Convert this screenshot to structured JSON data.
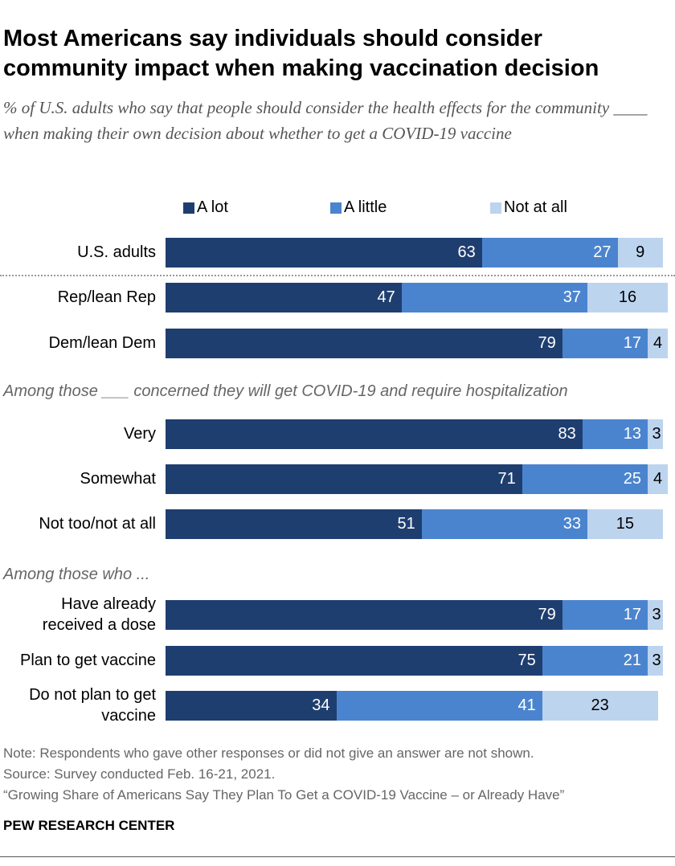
{
  "title": "Most Americans say individuals should consider community impact when making vaccination decision",
  "subtitle": "% of U.S. adults who say that people should consider the health effects for the community ____ when making their own decision about whether to get a COVID-19 vaccine",
  "chart_data": {
    "type": "bar",
    "orientation": "horizontal-stacked",
    "legend_position": "top",
    "series": [
      {
        "name": "A lot",
        "color": "#1f3e70"
      },
      {
        "name": "A little",
        "color": "#4b84ce"
      },
      {
        "name": "Not at all",
        "color": "#bdd4ee"
      }
    ],
    "sections": [
      {
        "label": "",
        "rows": [
          {
            "label": "U.S. adults",
            "values": [
              63,
              27,
              9
            ]
          }
        ]
      },
      {
        "label": "",
        "rows": [
          {
            "label": "Rep/lean Rep",
            "values": [
              47,
              37,
              16
            ]
          },
          {
            "label": "Dem/lean Dem",
            "values": [
              79,
              17,
              4
            ]
          }
        ]
      },
      {
        "label": "Among those ___ concerned they will get COVID-19 and require hospitalization",
        "rows": [
          {
            "label": "Very",
            "values": [
              83,
              13,
              3
            ]
          },
          {
            "label": "Somewhat",
            "values": [
              71,
              25,
              4
            ]
          },
          {
            "label": "Not too/not at all",
            "values": [
              51,
              33,
              15
            ]
          }
        ]
      },
      {
        "label": "Among those who ...",
        "rows": [
          {
            "label": "Have already received a dose",
            "values": [
              79,
              17,
              3
            ]
          },
          {
            "label": "Plan to get vaccine",
            "values": [
              75,
              21,
              3
            ]
          },
          {
            "label": "Do not plan to get vaccine",
            "values": [
              34,
              41,
              23
            ]
          }
        ]
      }
    ]
  },
  "footer": {
    "note": "Note: Respondents who gave other responses or did not give an answer are not shown.",
    "source": "Source: Survey conducted Feb. 16-21, 2021.",
    "report": "“Growing Share of Americans Say They Plan To Get a COVID-19 Vaccine – or Already Have”",
    "brand": "PEW RESEARCH CENTER"
  }
}
